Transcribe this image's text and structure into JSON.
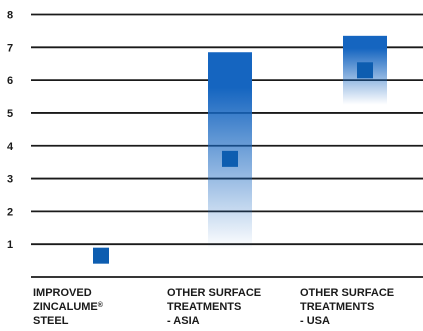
{
  "chart_data": {
    "type": "bar",
    "title": "",
    "xlabel": "",
    "ylabel": "",
    "ylim": [
      0,
      8
    ],
    "yticks": [
      1,
      2,
      3,
      4,
      5,
      6,
      7,
      8
    ],
    "grid": true,
    "categories": [
      {
        "lines": [
          "IMPROVED",
          "ZINCALUME",
          "STEEL"
        ],
        "sup": "®"
      },
      {
        "lines": [
          "OTHER SURFACE",
          "TREATMENTS",
          "- ASIA"
        ]
      },
      {
        "lines": [
          "OTHER SURFACE",
          "TREATMENTS",
          "- USA"
        ]
      }
    ],
    "series": [
      {
        "range_low": [
          null,
          0.85,
          5.25
        ],
        "range_high": [
          null,
          6.85,
          7.35
        ],
        "marker": [
          0.65,
          3.6,
          6.3
        ]
      }
    ],
    "colors": {
      "bar_top": "#1565c0",
      "marker": "#0d5db0",
      "grid": "#1a1a1a"
    }
  }
}
